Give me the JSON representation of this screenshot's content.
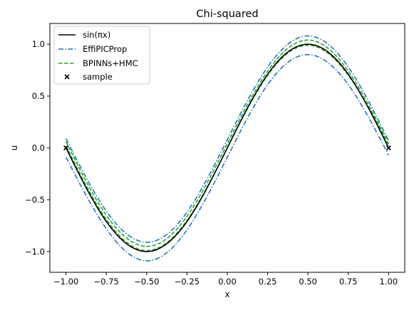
{
  "chart_data": {
    "type": "line",
    "title": "Chi-squared",
    "xlabel": "x",
    "ylabel": "u",
    "xlim": [
      -1.1,
      1.1
    ],
    "ylim": [
      -1.2,
      1.2
    ],
    "grid": false,
    "legend_position": "top-left",
    "x_ticks": [
      -1.0,
      -0.75,
      -0.5,
      -0.25,
      0.0,
      0.25,
      0.5,
      0.75,
      1.0
    ],
    "x_tick_labels": [
      "−1.00",
      "−0.75",
      "−0.50",
      "−0.25",
      "0.00",
      "0.25",
      "0.50",
      "0.75",
      "1.00"
    ],
    "y_ticks": [
      -1.0,
      -0.5,
      0.0,
      0.5,
      1.0
    ],
    "y_tick_labels": [
      "−1.0",
      "−0.5",
      "0.0",
      "0.5",
      "1.0"
    ],
    "series": [
      {
        "name": "sin(πx)",
        "style": "solid",
        "color": "#000000",
        "x": [
          -1.0,
          -0.75,
          -0.5,
          -0.25,
          0.0,
          0.25,
          0.5,
          0.75,
          1.0
        ],
        "y": [
          0.0,
          -0.71,
          -1.0,
          -0.71,
          0.0,
          0.71,
          1.0,
          0.71,
          0.0
        ]
      },
      {
        "name": "EffiPICProp",
        "style": "dashdot",
        "color": "#1f77b4",
        "band_x": [
          -1.0,
          -0.75,
          -0.5,
          -0.25,
          0.0,
          0.25,
          0.5,
          0.75,
          1.0
        ],
        "upper": [
          0.09,
          -0.61,
          -0.91,
          -0.62,
          0.08,
          0.78,
          1.08,
          0.78,
          0.07
        ],
        "lower": [
          -0.09,
          -0.78,
          -1.09,
          -0.79,
          -0.09,
          0.61,
          0.9,
          0.61,
          -0.07
        ]
      },
      {
        "name": "BPINNs+HMC",
        "style": "dashed",
        "color": "#2ca02c",
        "band_x": [
          -1.0,
          -0.75,
          -0.5,
          -0.25,
          0.0,
          0.25,
          0.5,
          0.75,
          1.0
        ],
        "upper": [
          0.06,
          -0.65,
          -0.95,
          -0.66,
          0.04,
          0.74,
          1.04,
          0.74,
          0.04
        ],
        "lower": [
          0.02,
          -0.69,
          -0.99,
          -0.7,
          0.0,
          0.7,
          0.99,
          0.7,
          0.03
        ]
      },
      {
        "name": "sample",
        "style": "marker-x",
        "color": "#000000",
        "x": [
          -1.0,
          1.0
        ],
        "y": [
          0.0,
          0.0
        ]
      }
    ]
  }
}
